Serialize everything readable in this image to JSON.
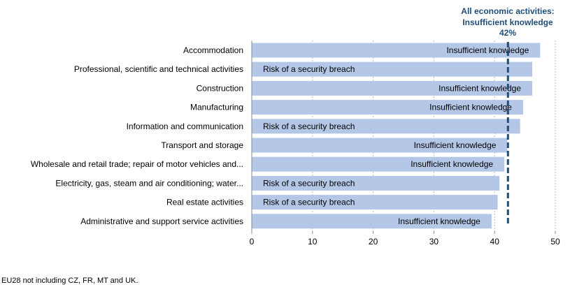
{
  "chart_data": {
    "type": "bar",
    "orientation": "horizontal",
    "categories": [
      "Accommodation",
      "Professional, scientific and technical activities",
      "Construction",
      "Manufacturing",
      "Information and communication",
      "Transport and storage",
      "Wholesale and retail trade; repair of motor vehicles and...",
      "Electricity, gas, steam and air conditioning; water...",
      "Real estate activities",
      "Administrative and support service activities"
    ],
    "values": [
      47.5,
      46.2,
      46.2,
      44.7,
      44.2,
      42.1,
      41.6,
      40.8,
      40.5,
      39.5
    ],
    "bar_labels": [
      "Insufficient  knowledge",
      "Risk of a security breach",
      "Insufficient  knowledge",
      "Insufficient  knowledge",
      "Risk of a security breach",
      "Insufficient  knowledge",
      "Insufficient  knowledge",
      "Risk of a security breach",
      "Risk of a security breach",
      "Insufficient  knowledge"
    ],
    "xlim": [
      0,
      50
    ],
    "xticks": [
      0,
      10,
      20,
      30,
      40,
      50
    ],
    "grid": "vertical",
    "reference_line": {
      "value": 42.2,
      "label_lines": [
        "All economic activities:",
        "Insufficient  knowledge",
        "42%"
      ]
    },
    "colors": {
      "bar": "#b4c7e7",
      "reference": "#1f4e79",
      "grid": "#c0c0c0"
    }
  },
  "footnote": "EU28 not including CZ, FR, MT and UK."
}
